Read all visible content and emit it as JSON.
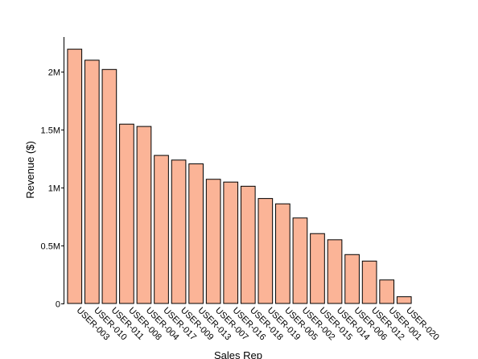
{
  "chart_data": {
    "type": "bar",
    "title": "",
    "xlabel": "Sales Rep",
    "ylabel": "Revenue ($)",
    "categories": [
      "USER-003",
      "USER-010",
      "USER-011",
      "USER-008",
      "USER-004",
      "USER-017",
      "USER-009",
      "USER-013",
      "USER-007",
      "USER-016",
      "USER-018",
      "USER-019",
      "USER-005",
      "USER-002",
      "USER-015",
      "USER-014",
      "USER-006",
      "USER-012",
      "USER-001",
      "USER-020"
    ],
    "values": [
      2195000,
      2100000,
      2020000,
      1548000,
      1528000,
      1278000,
      1238000,
      1205000,
      1072000,
      1048000,
      1012000,
      906000,
      860000,
      738000,
      603000,
      550000,
      422000,
      366000,
      203000,
      58000
    ],
    "ylim": [
      0,
      2300000
    ],
    "yticks": [
      0,
      500000,
      1000000,
      1500000,
      2000000
    ],
    "ytick_labels": [
      "0",
      "0.5M",
      "1M",
      "1.5M",
      "2M"
    ],
    "grid": false,
    "bar_color": "#fbb497",
    "edge_color": "#000000"
  }
}
